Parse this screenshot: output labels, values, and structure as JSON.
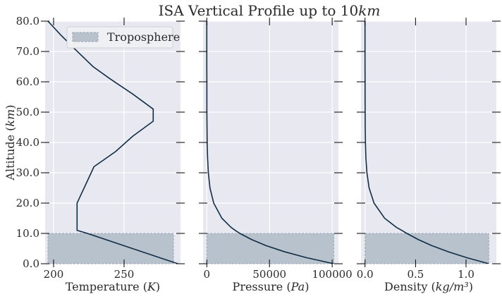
{
  "title": "ISA Vertical Profile up to 10km",
  "colors": {
    "background": "#e8e8f0",
    "grid": "#ffffff",
    "line": "#0f2d45",
    "shade": "#b8c2cd",
    "shade_edge": "#9aa6b2"
  },
  "legend": {
    "label": "Troposphere",
    "placement": "top-right"
  },
  "y_axis": {
    "label": "Altitude (km)",
    "ticks": [
      0,
      10,
      20,
      30,
      40,
      50,
      60,
      70,
      80
    ],
    "tick_labels": [
      "0.0",
      "10.0",
      "20.0",
      "30.0",
      "40.0",
      "50.0",
      "60.0",
      "70.0",
      "80.0"
    ],
    "ylim": [
      0,
      80
    ]
  },
  "chart_data": [
    {
      "type": "line",
      "xlabel": "Temperature (K)",
      "xlim": [
        194,
        290
      ],
      "xticks": [
        200,
        250
      ],
      "xtick_labels": [
        "200",
        "250"
      ],
      "shade": {
        "x_from": 196,
        "x_to": 285,
        "y_from": 0,
        "y_to": 10
      },
      "x": [
        288.15,
        272,
        256,
        240,
        224,
        216.65,
        216.65,
        216.65,
        228.65,
        244,
        256,
        270.65,
        270.65,
        256,
        240,
        228,
        214.65,
        205,
        196
      ],
      "y": [
        0,
        2.5,
        5,
        7.5,
        10,
        11,
        15,
        20,
        32,
        37,
        42,
        47,
        51,
        56,
        61,
        65,
        71,
        75.5,
        80
      ]
    },
    {
      "type": "line",
      "xlabel": "Pressure (Pa)",
      "xlim": [
        -3000,
        105000
      ],
      "xticks": [
        0,
        50000,
        100000
      ],
      "xtick_labels": [
        "0",
        "50000",
        "100000"
      ],
      "shade": {
        "x_from": 0,
        "x_to": 101325,
        "y_from": 0,
        "y_to": 10
      },
      "x": [
        101325,
        79495,
        61640,
        47181,
        35651,
        26436,
        22632,
        19330,
        12045,
        5475,
        2511,
        1197,
        592,
        287,
        122,
        52,
        20,
        10,
        5,
        2.5,
        1
      ],
      "y": [
        0,
        2,
        4,
        6,
        8,
        10,
        11,
        12,
        15,
        20,
        25,
        30,
        35,
        40,
        45,
        50,
        55,
        60,
        65,
        70,
        80
      ]
    },
    {
      "type": "line",
      "xlabel": "Density (kg/m³)",
      "xlim": [
        -0.04,
        1.3
      ],
      "xticks": [
        0,
        0.5,
        1.0
      ],
      "xtick_labels": [
        "0.0",
        "0.5",
        "1.0"
      ],
      "shade": {
        "x_from": 0,
        "x_to": 1.225,
        "y_from": 0,
        "y_to": 10
      },
      "x": [
        1.225,
        1.007,
        0.819,
        0.66,
        0.526,
        0.414,
        0.364,
        0.311,
        0.194,
        0.0889,
        0.0401,
        0.0184,
        0.0085,
        0.004,
        0.002,
        0.001,
        0.0005,
        0.0003,
        0.0001,
        5e-05,
        2e-05
      ],
      "y": [
        0,
        2,
        4,
        6,
        8,
        10,
        11,
        12,
        15,
        20,
        25,
        30,
        35,
        40,
        45,
        50,
        55,
        60,
        65,
        70,
        80
      ]
    }
  ]
}
